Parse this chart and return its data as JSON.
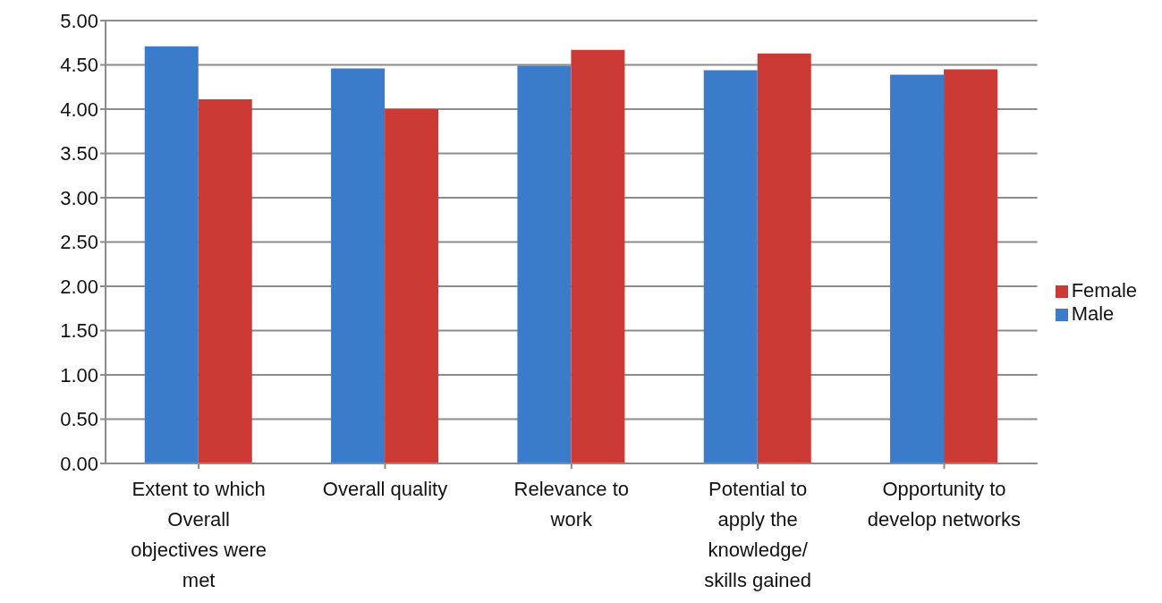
{
  "chart_data": {
    "type": "bar",
    "categories": [
      "Extent to which Overall objectives were met",
      "Overall quality",
      "Relevance to work",
      "Potential to apply the knowledge/ skills gained",
      "Opportunity to develop networks"
    ],
    "series": [
      {
        "name": "Male",
        "color": "#3a7bca",
        "values": [
          4.71,
          4.46,
          4.49,
          4.44,
          4.39
        ]
      },
      {
        "name": "Female",
        "color": "#cc3a36",
        "values": [
          4.11,
          4.0,
          4.67,
          4.63,
          4.45
        ]
      }
    ],
    "ylim": [
      0,
      5
    ],
    "yticks": [
      {
        "value": 0,
        "label": "0.00"
      },
      {
        "value": 0.5,
        "label": "0.50"
      },
      {
        "value": 1,
        "label": "1.00"
      },
      {
        "value": 1.5,
        "label": "1.50"
      },
      {
        "value": 2,
        "label": "2.00"
      },
      {
        "value": 2.5,
        "label": "2.50"
      },
      {
        "value": 3,
        "label": "3.00"
      },
      {
        "value": 3.5,
        "label": "3.50"
      },
      {
        "value": 4,
        "label": "4.00"
      },
      {
        "value": 4.5,
        "label": "4.50"
      },
      {
        "value": 5,
        "label": "5.00"
      }
    ],
    "grid": "y",
    "legend": "right"
  }
}
